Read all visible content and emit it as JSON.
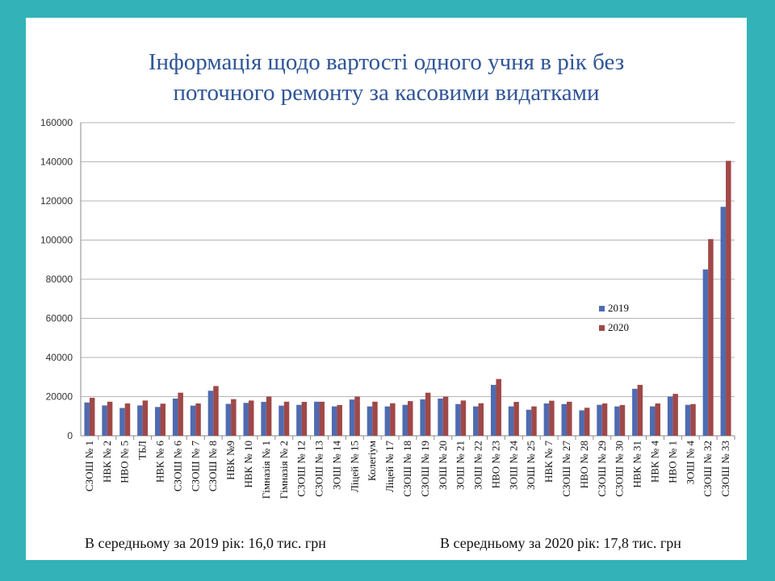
{
  "title_lines": [
    "Інформація щодо вартості одного учня в рік без",
    "поточного ремонту за касовими видатками"
  ],
  "footer": {
    "left": "В середньому за 2019 рік: 16,0 тис. грн",
    "right": "В середньому за 2020 рік: 17,8 тис. грн"
  },
  "chart_data": {
    "type": "bar",
    "title": "Інформація щодо вартості одного учня в рік без поточного ремонту за касовими видатками",
    "ylim": [
      0,
      160000
    ],
    "yticks": [
      0,
      20000,
      40000,
      60000,
      80000,
      100000,
      120000,
      140000,
      160000
    ],
    "grid": true,
    "legend": "right-middle",
    "categories": [
      "СЗОШ № 1",
      "НВК № 2",
      "НВО № 5",
      "ТБЛ",
      "НВК № 6",
      "СЗОШ № 6",
      "СЗОШ № 7",
      "СЗОШ № 8",
      "НВК №9",
      "НВК № 10",
      "Гімназія № 1",
      "Гімназія № 2",
      "СЗОШ № 12",
      "СЗОШ № 13",
      "ЗОШ № 14",
      "Ліцей № 15",
      "Колегіум",
      "Ліцей № 17",
      "СЗОШ № 18",
      "СЗОШ № 19",
      "ЗОШ № 20",
      "ЗОШ № 21",
      "ЗОШ № 22",
      "НВО № 23",
      "ЗОШ № 24",
      "ЗОШ № 25",
      "НВК № 7",
      "СЗОШ № 27",
      "НВО № 28",
      "СЗОШ № 29",
      "СЗОШ № 30",
      "НВК № 31",
      "НВК № 4",
      "НВО № 1",
      "ЗОШ № 4",
      "СЗОШ № 32",
      "СЗОШ № 33"
    ],
    "series": [
      {
        "name": "2019",
        "color": "#4f6bb0",
        "values": [
          17000,
          15500,
          14200,
          15500,
          14700,
          19000,
          15400,
          23000,
          16300,
          16800,
          17300,
          15400,
          15800,
          17400,
          15000,
          18500,
          15000,
          15000,
          15800,
          18600,
          19000,
          16200,
          15000,
          26000,
          15000,
          13300,
          16500,
          16200,
          13000,
          15800,
          15000,
          24000,
          15000,
          20000,
          15800,
          85000,
          117000
        ]
      },
      {
        "name": "2020",
        "color": "#a04848",
        "values": [
          19400,
          17400,
          16500,
          18000,
          16400,
          22000,
          16500,
          25400,
          18700,
          18000,
          20000,
          17400,
          17300,
          17400,
          15700,
          20000,
          17400,
          16600,
          17700,
          22000,
          20000,
          18000,
          16600,
          29000,
          17300,
          15000,
          17900,
          17400,
          14300,
          16500,
          15700,
          26000,
          16500,
          21400,
          16200,
          100500,
          140500
        ]
      }
    ]
  }
}
